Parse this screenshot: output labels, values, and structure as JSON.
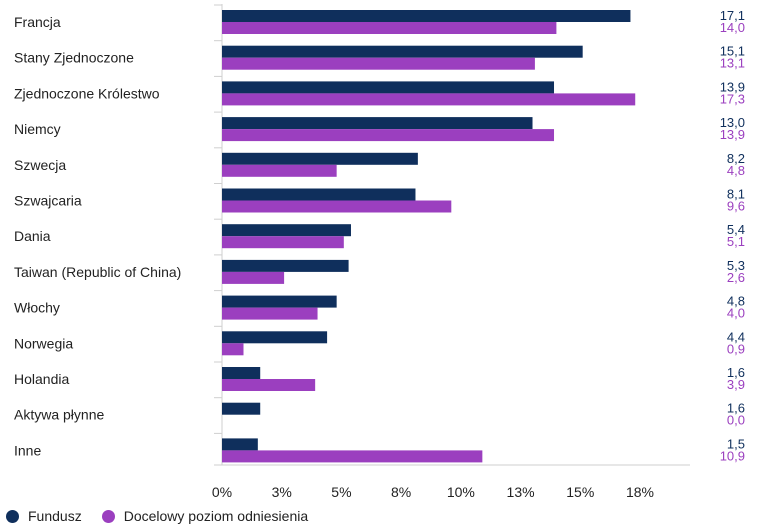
{
  "chart_data": {
    "type": "bar",
    "orientation": "horizontal",
    "categories": [
      "Francja",
      "Stany Zjednoczone",
      "Zjednoczone Królestwo",
      "Niemcy",
      "Szwecja",
      "Szwajcaria",
      "Dania",
      "Taiwan (Republic of China)",
      "Włochy",
      "Norwegia",
      "Holandia",
      "Aktywa płynne",
      "Inne"
    ],
    "series": [
      {
        "name": "Fundusz",
        "color": "#0f2f5c",
        "values": [
          17.1,
          15.1,
          13.9,
          13.0,
          8.2,
          8.1,
          5.4,
          5.3,
          4.8,
          4.4,
          1.6,
          1.6,
          1.5
        ],
        "labels": [
          "17,1",
          "15,1",
          "13,9",
          "13,0",
          "8,2",
          "8,1",
          "5,4",
          "5,3",
          "4,8",
          "4,4",
          "1,6",
          "1,6",
          "1,5"
        ]
      },
      {
        "name": "Docelowy poziom odniesienia",
        "color": "#9b3fbf",
        "values": [
          14.0,
          13.1,
          17.3,
          13.9,
          4.8,
          9.6,
          5.1,
          2.6,
          4.0,
          0.9,
          3.9,
          0.0,
          10.9
        ],
        "labels": [
          "14,0",
          "13,1",
          "17,3",
          "13,9",
          "4,8",
          "9,6",
          "5,1",
          "2,6",
          "4,0",
          "0,9",
          "3,9",
          "0,0",
          "10,9"
        ]
      }
    ],
    "x_ticks": [
      "0%",
      "3%",
      "5%",
      "8%",
      "10%",
      "13%",
      "15%",
      "18%"
    ],
    "xlim": [
      0,
      20
    ],
    "legend_position": "bottom-left",
    "grid": false
  }
}
